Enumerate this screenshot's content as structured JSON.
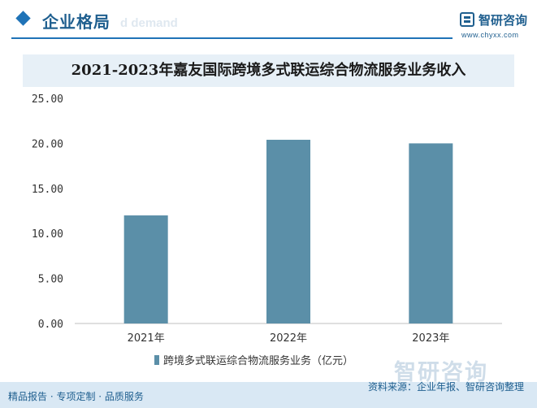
{
  "header": {
    "title": "企业格局",
    "subtitle_watermark": "d demand"
  },
  "brand": {
    "name": "智研咨询",
    "url": "www.chyxx.com",
    "watermark": "智研咨询"
  },
  "colors": {
    "accent": "#1f73b7",
    "bar": "#5b8fa8",
    "title_band": "#e7f0f7",
    "footer_band": "#d9e8f4"
  },
  "chart_data": {
    "type": "bar",
    "title": "2021-2023年嘉友国际跨境多式联运综合物流服务业务收入",
    "categories": [
      "2021年",
      "2022年",
      "2023年"
    ],
    "series": [
      {
        "name": "跨境多式联运综合物流服务业务（亿元）",
        "values": [
          12.0,
          20.4,
          20.0
        ]
      }
    ],
    "yticks": [
      "0.00",
      "5.00",
      "10.00",
      "15.00",
      "20.00",
      "25.00"
    ],
    "ylim": [
      0,
      25
    ],
    "grid": false,
    "legend_position": "bottom"
  },
  "footer": {
    "left": "精品报告 · 专项定制 · 品质服务",
    "source": "资料来源：企业年报、智研咨询整理"
  }
}
